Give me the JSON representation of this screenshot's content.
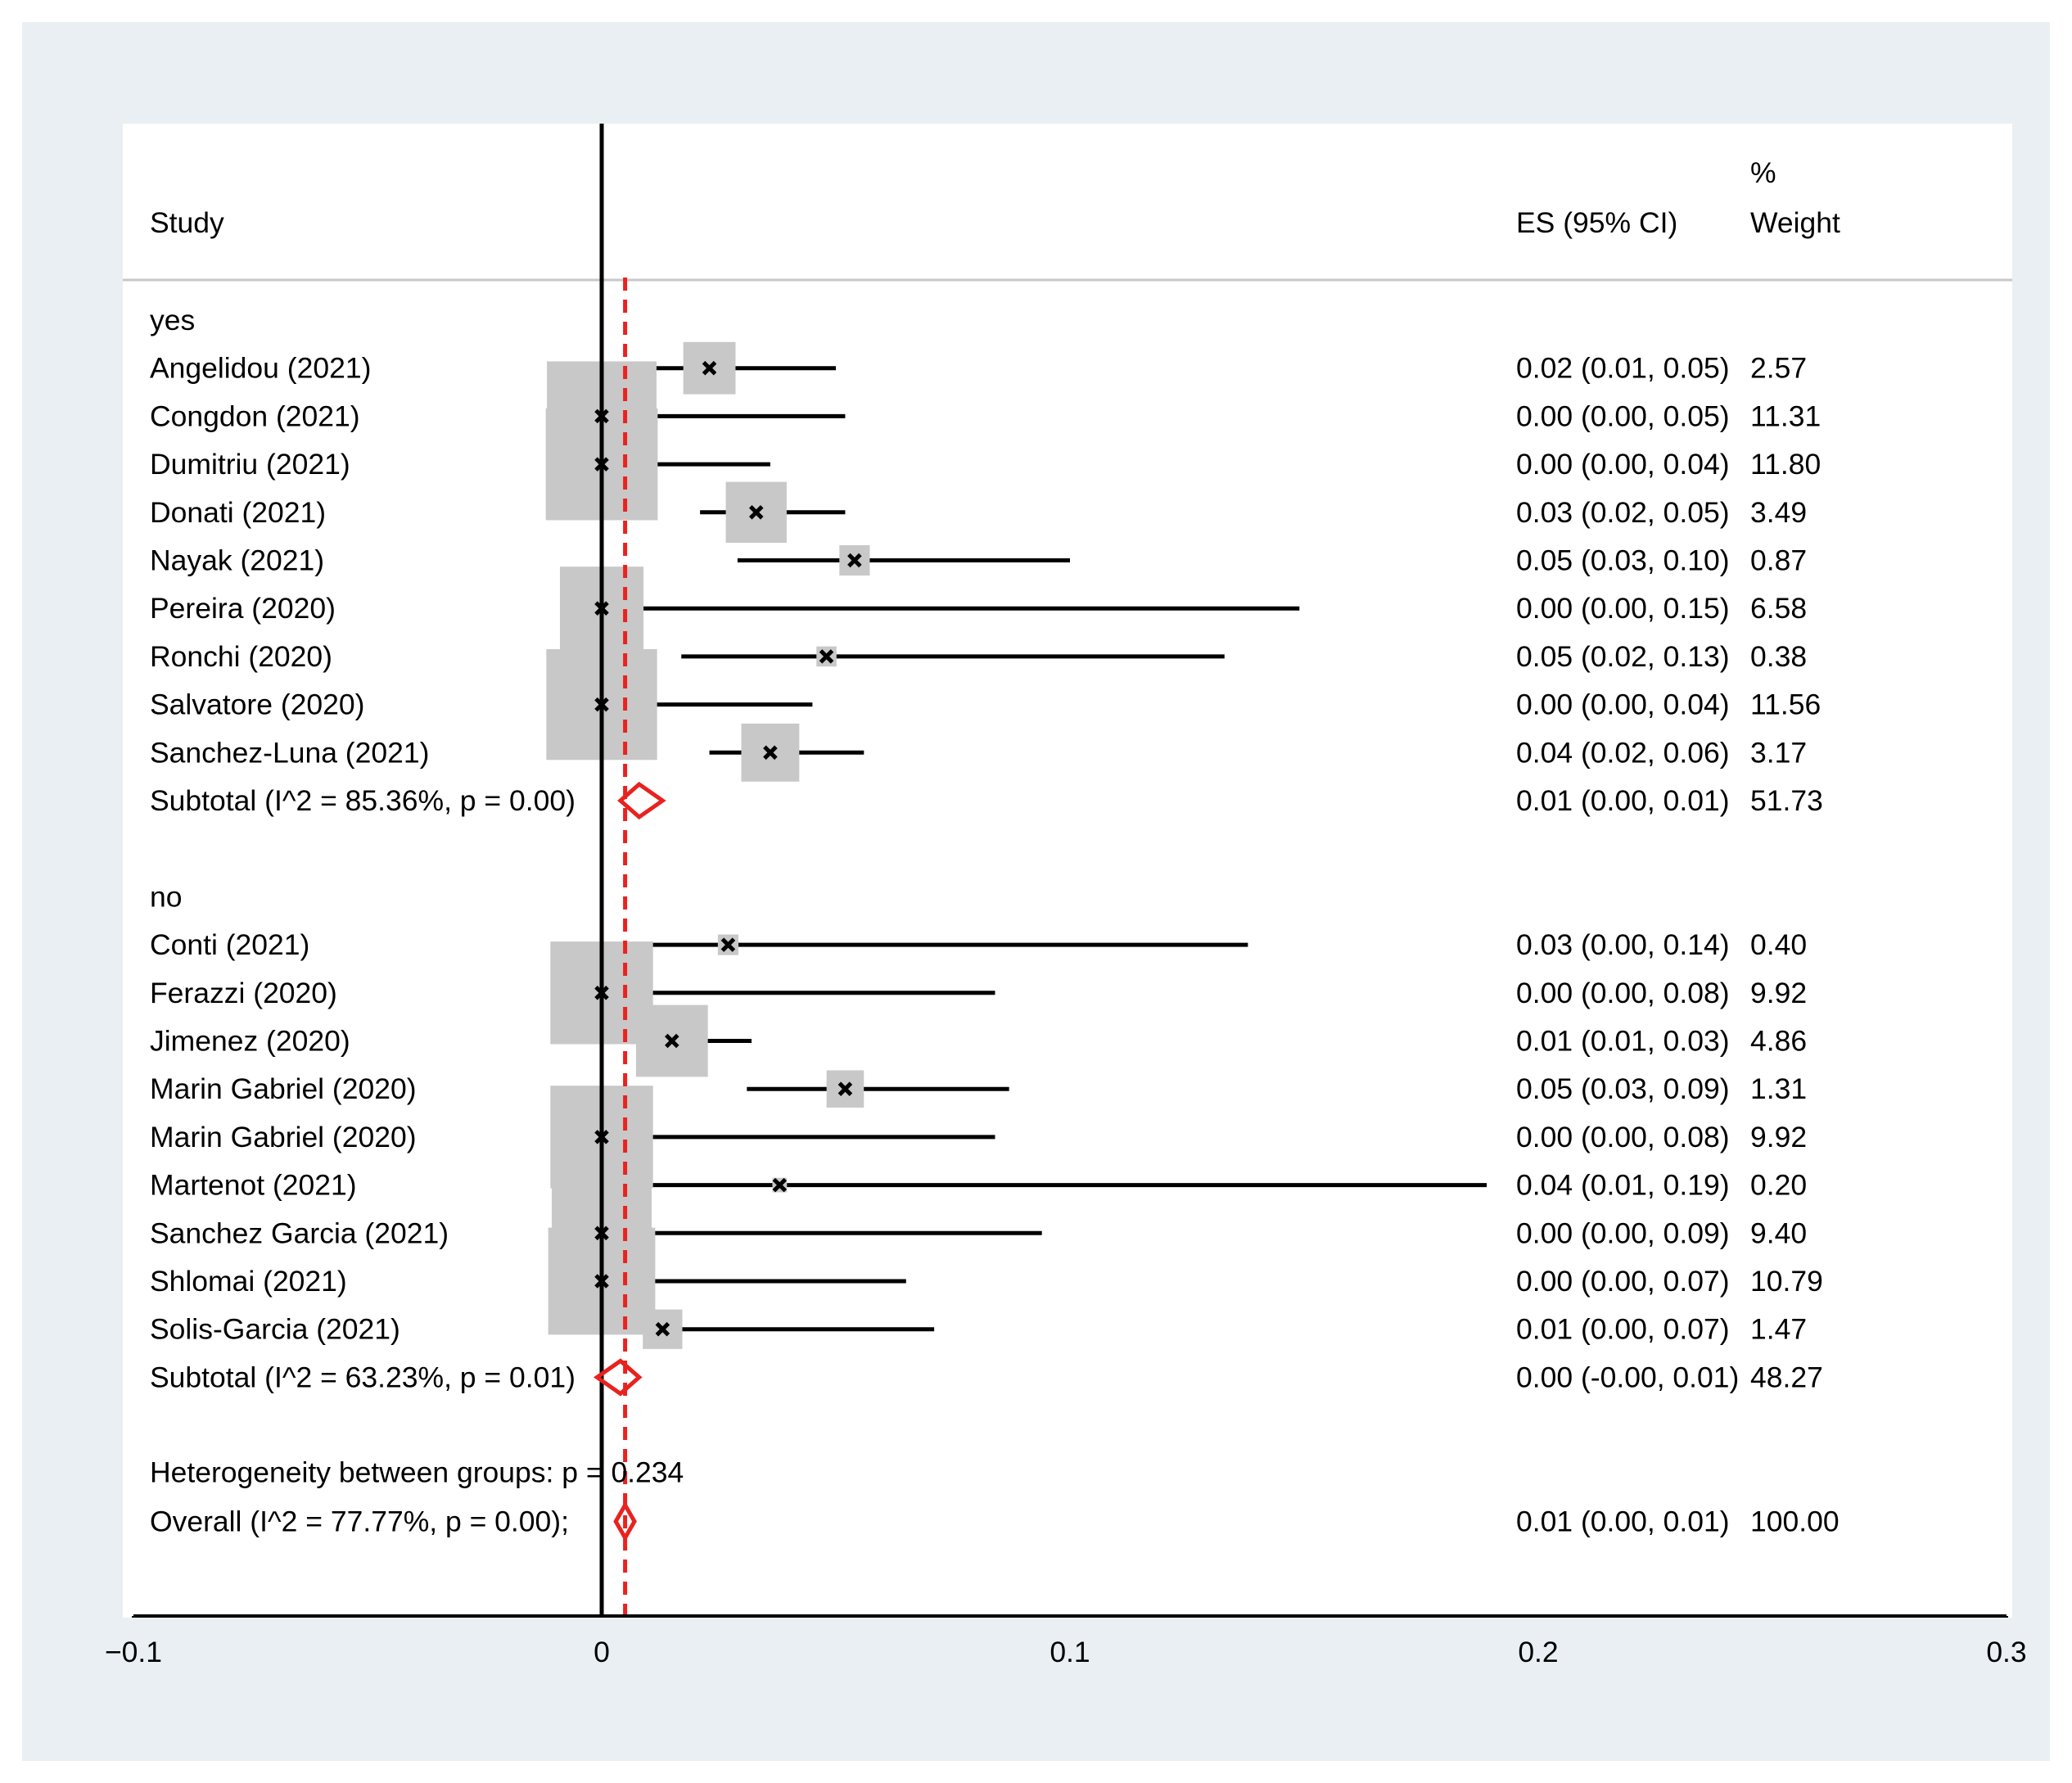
{
  "chart_data": {
    "type": "forest",
    "x_axis": {
      "ticks": [
        -0.1,
        0,
        0.1,
        0.2,
        0.3
      ],
      "tick_labels": [
        "−0.1",
        "0",
        "0.1",
        "0.2",
        "0.3"
      ],
      "xlim": [
        -0.1,
        0.3
      ]
    },
    "null_line_x": 0,
    "overall_line_x": 0.005,
    "headers": {
      "study": "Study",
      "es": "ES (95% CI)",
      "weight_top": "%",
      "weight_bottom": "Weight"
    },
    "groups": [
      {
        "label": "yes",
        "studies": [
          {
            "study": "Angelidou  (2021)",
            "es": 0.023,
            "lo": 0.011,
            "hi": 0.05,
            "es_text": "0.02 (0.01, 0.05)",
            "weight": 2.57,
            "weight_text": "2.57"
          },
          {
            "study": "Congdon (2021)",
            "es": 0.0,
            "lo": 0.0,
            "hi": 0.052,
            "es_text": "0.00 (0.00, 0.05)",
            "weight": 11.31,
            "weight_text": "11.31"
          },
          {
            "study": "Dumitriu  (2021)",
            "es": 0.0,
            "lo": 0.0,
            "hi": 0.036,
            "es_text": "0.00 (0.00, 0.04)",
            "weight": 11.8,
            "weight_text": "11.80"
          },
          {
            "study": "Donati  (2021)",
            "es": 0.033,
            "lo": 0.021,
            "hi": 0.052,
            "es_text": "0.03 (0.02, 0.05)",
            "weight": 3.49,
            "weight_text": "3.49"
          },
          {
            "study": "Nayak  (2021)",
            "es": 0.054,
            "lo": 0.029,
            "hi": 0.1,
            "es_text": "0.05 (0.03, 0.10)",
            "weight": 0.87,
            "weight_text": "0.87"
          },
          {
            "study": "Pereira  (2020)",
            "es": 0.0,
            "lo": 0.0,
            "hi": 0.149,
            "es_text": "0.00 (0.00, 0.15)",
            "weight": 6.58,
            "weight_text": "6.58"
          },
          {
            "study": "Ronchi  (2020)",
            "es": 0.048,
            "lo": 0.017,
            "hi": 0.133,
            "es_text": "0.05 (0.02, 0.13)",
            "weight": 0.38,
            "weight_text": "0.38"
          },
          {
            "study": "Salvatore  (2020)",
            "es": 0.0,
            "lo": 0.0,
            "hi": 0.045,
            "es_text": "0.00 (0.00, 0.04)",
            "weight": 11.56,
            "weight_text": "11.56"
          },
          {
            "study": "Sanchez-Luna (2021)",
            "es": 0.036,
            "lo": 0.023,
            "hi": 0.056,
            "es_text": "0.04 (0.02, 0.06)",
            "weight": 3.17,
            "weight_text": "3.17"
          }
        ],
        "subtotal": {
          "label": "Subtotal  (I^2 = 85.36%, p = 0.00)",
          "es": 0.008,
          "lo": 0.004,
          "hi": 0.013,
          "es_text": "0.01 (0.00, 0.01)",
          "weight_text": "51.73"
        }
      },
      {
        "label": "no",
        "studies": [
          {
            "study": "Conti  (2021)",
            "es": 0.027,
            "lo": 0.005,
            "hi": 0.138,
            "es_text": "0.03 (0.00, 0.14)",
            "weight": 0.4,
            "weight_text": "0.40"
          },
          {
            "study": "Ferazzi  (2020)",
            "es": 0.0,
            "lo": 0.0,
            "hi": 0.084,
            "es_text": "0.00 (0.00, 0.08)",
            "weight": 9.92,
            "weight_text": "9.92"
          },
          {
            "study": "Jimenez  (2020)",
            "es": 0.015,
            "lo": 0.007,
            "hi": 0.032,
            "es_text": "0.01 (0.01, 0.03)",
            "weight": 4.86,
            "weight_text": "4.86"
          },
          {
            "study": "Marin Gabriel  (2020)",
            "es": 0.052,
            "lo": 0.031,
            "hi": 0.087,
            "es_text": "0.05 (0.03, 0.09)",
            "weight": 1.31,
            "weight_text": "1.31"
          },
          {
            "study": "Marin Gabriel  (2020)",
            "es": 0.0,
            "lo": 0.0,
            "hi": 0.084,
            "es_text": "0.00 (0.00, 0.08)",
            "weight": 9.92,
            "weight_text": "9.92"
          },
          {
            "study": "Martenot  (2021)",
            "es": 0.038,
            "lo": 0.007,
            "hi": 0.189,
            "es_text": "0.04 (0.01, 0.19)",
            "weight": 0.2,
            "weight_text": "0.20"
          },
          {
            "study": "Sanchez Garcia  (2021)",
            "es": 0.0,
            "lo": 0.0,
            "hi": 0.094,
            "es_text": "0.00 (0.00, 0.09)",
            "weight": 9.4,
            "weight_text": "9.40"
          },
          {
            "study": "Shlomai  (2021)",
            "es": 0.0,
            "lo": 0.0,
            "hi": 0.065,
            "es_text": "0.00 (0.00, 0.07)",
            "weight": 10.79,
            "weight_text": "10.79"
          },
          {
            "study": "Solis-Garcia  (2021)",
            "es": 0.013,
            "lo": 0.002,
            "hi": 0.071,
            "es_text": "0.01 (0.00, 0.07)",
            "weight": 1.47,
            "weight_text": "1.47"
          }
        ],
        "subtotal": {
          "label": "Subtotal  (I^2 = 63.23%, p = 0.01)",
          "es": 0.004,
          "lo": -0.001,
          "hi": 0.008,
          "es_text": "0.00 (-0.00, 0.01)",
          "weight_text": "48.27"
        }
      }
    ],
    "heterogeneity": "Heterogeneity between groups: p = 0.234",
    "overall": {
      "label": "Overall  (I^2 = 77.77%, p = 0.00);",
      "es": 0.005,
      "lo": 0.003,
      "hi": 0.007,
      "es_text": "0.01 (0.00, 0.01)",
      "weight_text": "100.00"
    },
    "colors": {
      "box": "#c8c8c8",
      "diamond": "#e8231f",
      "overall_line": "#e8231f",
      "line": "#000000",
      "background": "#e9eff2"
    }
  }
}
